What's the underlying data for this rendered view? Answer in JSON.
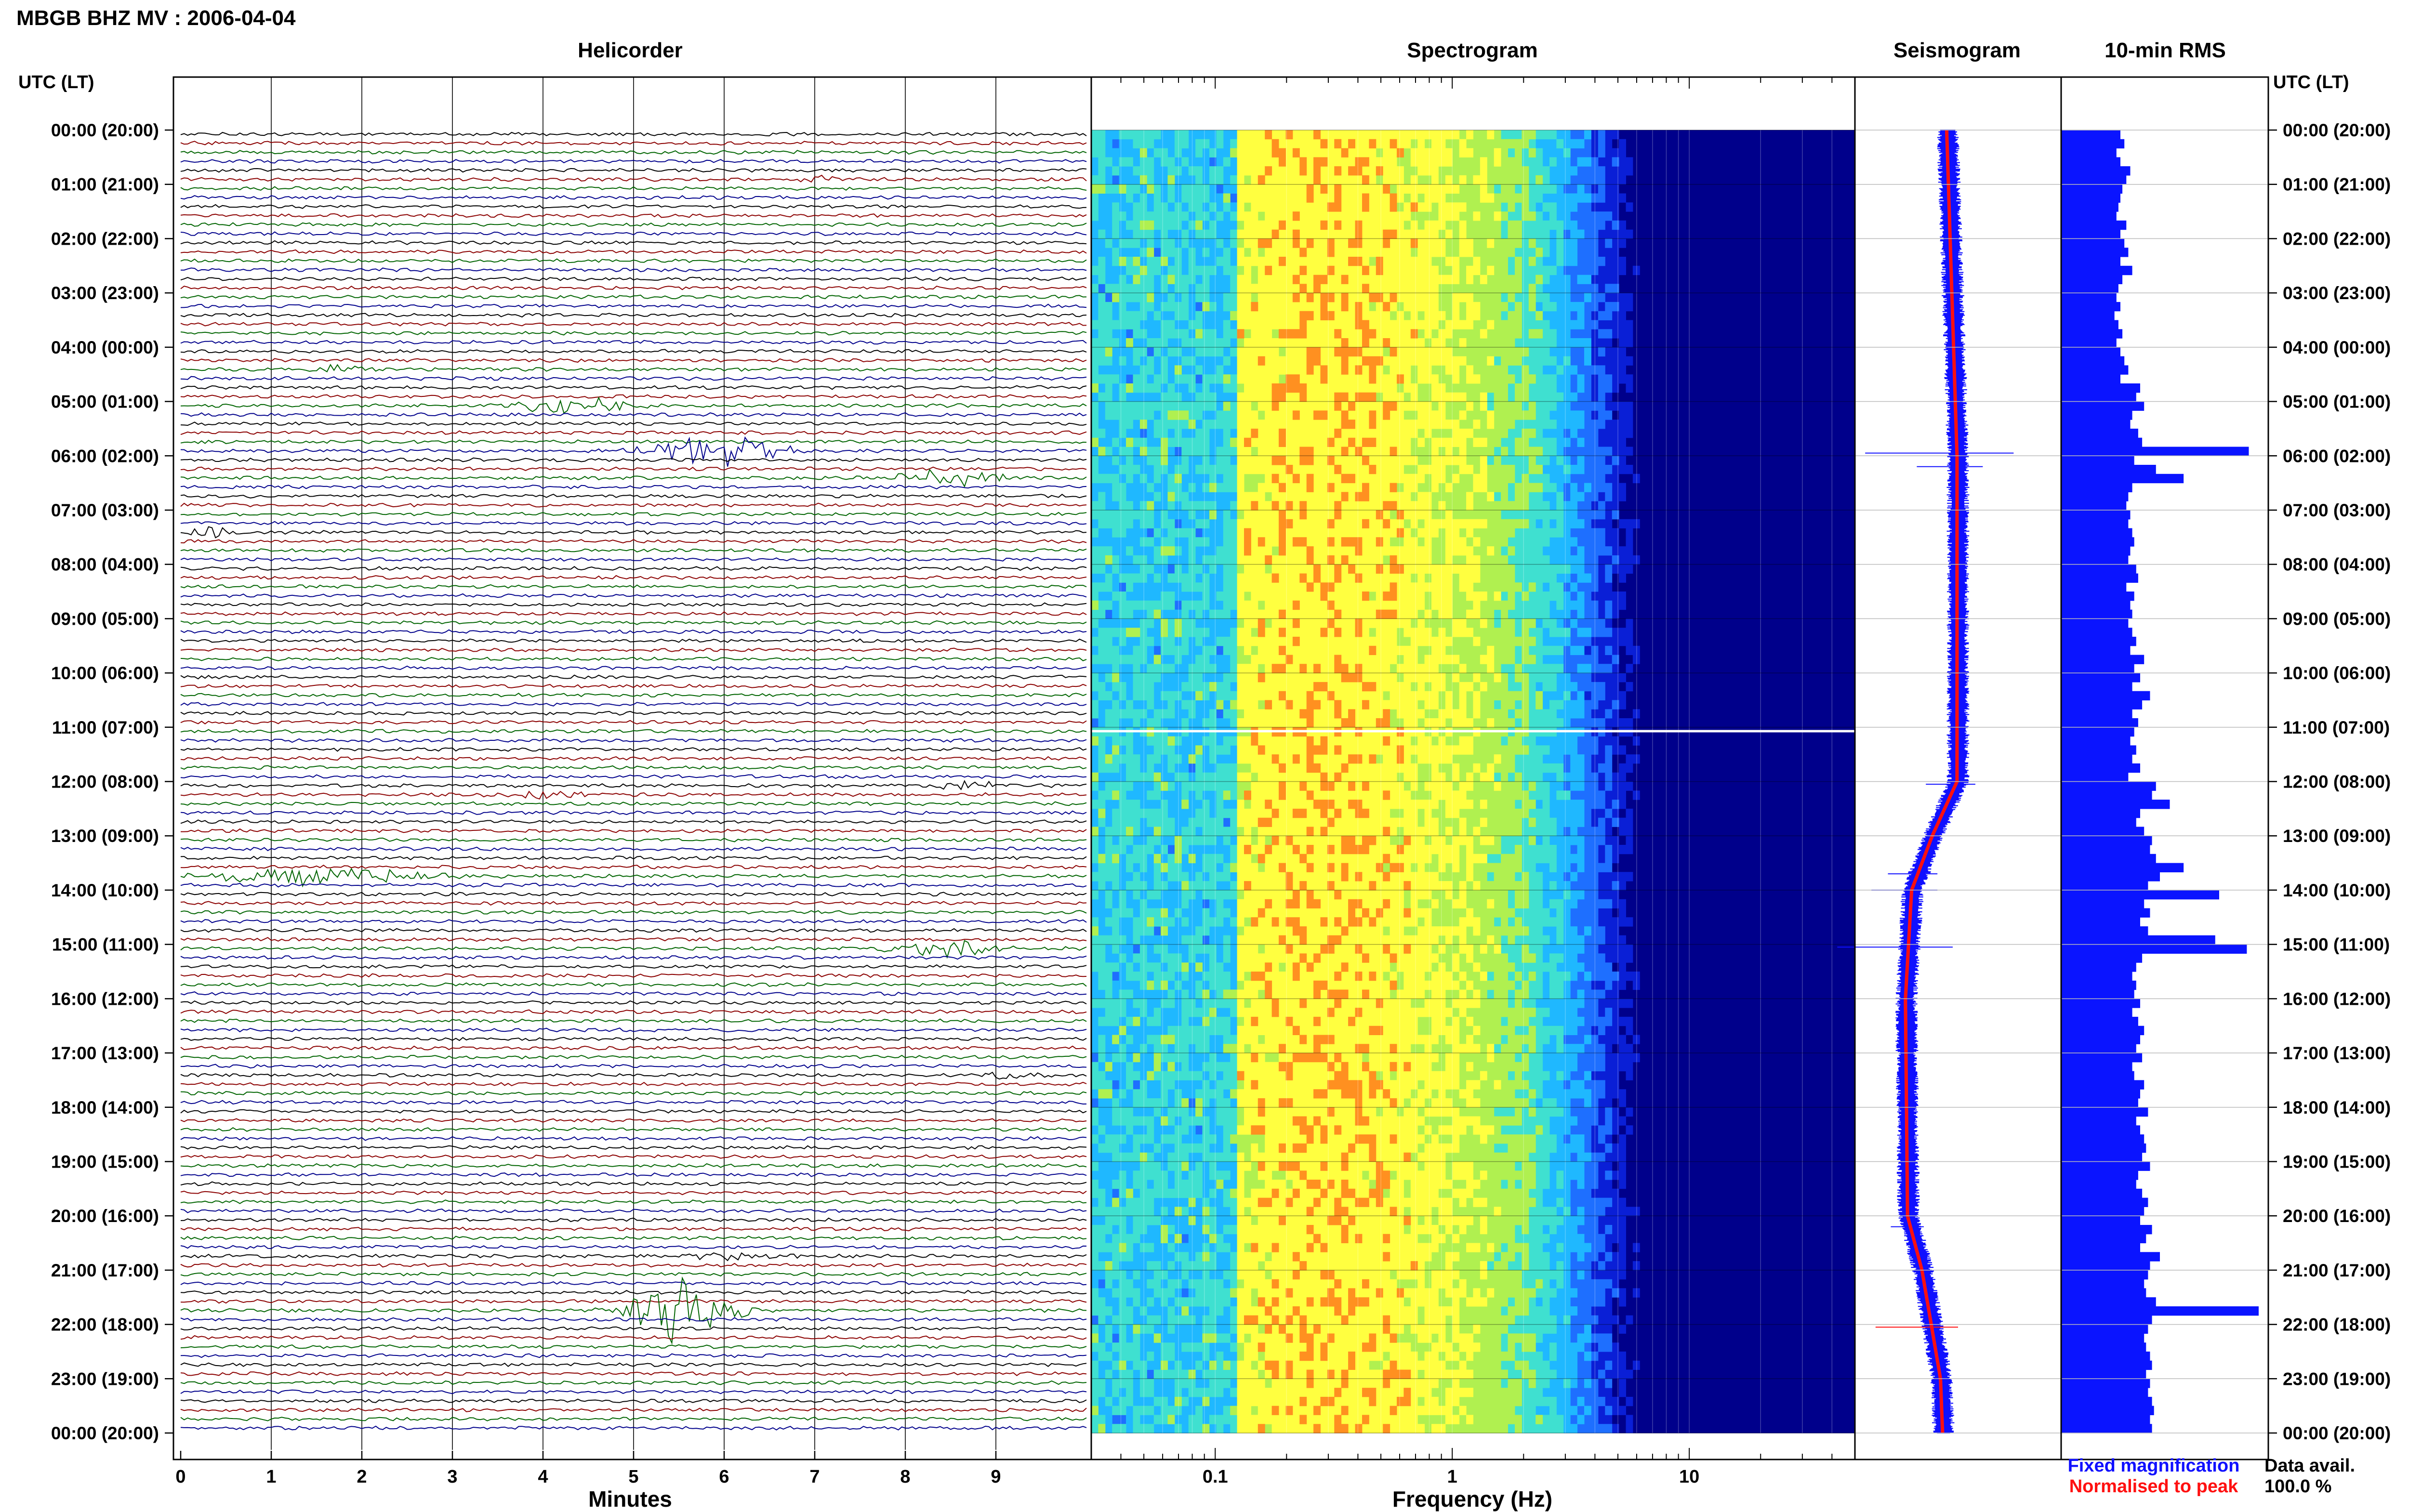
{
  "header": {
    "title": "MBGB BHZ MV : 2006-04-04"
  },
  "panels": {
    "helicorder": "Helicorder",
    "spectrogram": "Spectrogram",
    "seismogram": "Seismogram",
    "rms": "10-min RMS"
  },
  "axis_labels": {
    "time_left": "UTC (LT)",
    "time_right": "UTC (LT)",
    "helicorder_x": "Minutes",
    "spectrogram_x": "Frequency (Hz)"
  },
  "legend": {
    "fixed": "Fixed magnification",
    "normalised": "Normalised to peak",
    "fixed_color": "#1010ff",
    "normalised_color": "#ff1010"
  },
  "data_avail": {
    "label": "Data avail.",
    "value": "100.0 %"
  },
  "colors": {
    "trace_cycle": [
      "#000000",
      "#8b0000",
      "#006400",
      "#00008b"
    ],
    "rms_bar": "#0a14ff",
    "seismo_fixed": "#1010ff",
    "seismo_norm": "#ff1010"
  },
  "chart_data": [
    {
      "type": "line",
      "title": "Helicorder",
      "xlabel": "Minutes",
      "x_ticks": [
        0,
        1,
        2,
        3,
        4,
        5,
        6,
        7,
        8,
        9
      ],
      "xlim": [
        0,
        10
      ],
      "rows": 144,
      "time_ticks": [
        "00:00 (20:00)",
        "01:00 (21:00)",
        "02:00 (22:00)",
        "03:00 (23:00)",
        "04:00 (00:00)",
        "05:00 (01:00)",
        "06:00 (02:00)",
        "07:00 (03:00)",
        "08:00 (04:00)",
        "09:00 (05:00)",
        "10:00 (06:00)",
        "11:00 (07:00)",
        "12:00 (08:00)",
        "13:00 (09:00)",
        "14:00 (10:00)",
        "15:00 (11:00)",
        "16:00 (12:00)",
        "17:00 (13:00)",
        "18:00 (14:00)",
        "19:00 (15:00)",
        "20:00 (16:00)",
        "21:00 (17:00)",
        "22:00 (18:00)",
        "23:00 (19:00)",
        "00:00 (20:00)"
      ],
      "events": [
        {
          "row": 35,
          "minute": 5.9,
          "amp": 1.6,
          "dur": 1.2
        },
        {
          "row": 130,
          "minute": 5.55,
          "amp": 3.5,
          "dur": 0.9
        },
        {
          "row": 30,
          "minute": 4.3,
          "amp": 0.9,
          "dur": 1.3
        },
        {
          "row": 38,
          "minute": 8.5,
          "amp": 0.8,
          "dur": 1.1
        },
        {
          "row": 82,
          "minute": 1.5,
          "amp": 0.9,
          "dur": 2.0
        },
        {
          "row": 90,
          "minute": 8.4,
          "amp": 1.0,
          "dur": 0.9
        },
        {
          "row": 72,
          "minute": 8.6,
          "amp": 0.6,
          "dur": 0.6
        },
        {
          "row": 73,
          "minute": 4.0,
          "amp": 0.5,
          "dur": 0.8
        },
        {
          "row": 124,
          "minute": 6.0,
          "amp": 0.4,
          "dur": 1.0
        },
        {
          "row": 26,
          "minute": 1.7,
          "amp": 0.4,
          "dur": 0.8
        },
        {
          "row": 44,
          "minute": 0.4,
          "amp": 0.5,
          "dur": 0.6
        },
        {
          "row": 104,
          "minute": 9.1,
          "amp": 0.4,
          "dur": 0.6
        },
        {
          "row": 5,
          "minute": 7.0,
          "amp": 0.4,
          "dur": 0.7
        }
      ]
    },
    {
      "type": "heatmap",
      "title": "Spectrogram",
      "xlabel": "Frequency (Hz)",
      "x_scale": "log",
      "x_ticks": [
        0.1,
        1,
        10
      ],
      "xlim": [
        0.03,
        50
      ],
      "y_hours": [
        0,
        24
      ],
      "colormap": [
        "#00008b",
        "#0a1fd6",
        "#1e6fff",
        "#1fb8ff",
        "#3fe0d0",
        "#b0f050",
        "#ffff40",
        "#ff9020"
      ],
      "peak_frequency_hz": 0.3
    },
    {
      "type": "line",
      "title": "Seismogram",
      "series": [
        {
          "name": "Fixed magnification",
          "color": "#1010ff"
        },
        {
          "name": "Normalised to peak",
          "color": "#ff1010"
        }
      ],
      "profile_hours": [
        0,
        6,
        12,
        13,
        14,
        16,
        20,
        21,
        23,
        24
      ],
      "profile_offset": [
        0.45,
        0.5,
        0.5,
        0.38,
        0.28,
        0.25,
        0.26,
        0.33,
        0.42,
        0.43
      ]
    },
    {
      "type": "bar",
      "title": "10-min RMS",
      "orientation": "horizontal",
      "values": [
        30,
        32,
        28,
        30,
        35,
        33,
        31,
        30,
        29,
        28,
        33,
        30,
        32,
        34,
        30,
        36,
        31,
        29,
        28,
        30,
        27,
        29,
        31,
        28,
        30,
        32,
        34,
        30,
        40,
        38,
        42,
        36,
        35,
        39,
        41,
        95,
        37,
        48,
        62,
        36,
        34,
        33,
        35,
        34,
        36,
        37,
        35,
        34,
        38,
        39,
        33,
        37,
        35,
        36,
        34,
        36,
        38,
        35,
        42,
        37,
        40,
        36,
        45,
        41,
        36,
        39,
        37,
        35,
        38,
        36,
        40,
        34,
        48,
        46,
        55,
        40,
        38,
        42,
        46,
        45,
        48,
        62,
        50,
        44,
        80,
        42,
        45,
        40,
        44,
        78,
        94,
        41,
        38,
        36,
        38,
        37,
        40,
        36,
        39,
        42,
        40,
        38,
        41,
        36,
        37,
        42,
        40,
        39,
        44,
        38,
        40,
        42,
        43,
        41,
        45,
        39,
        38,
        41,
        44,
        42,
        40,
        46,
        43,
        40,
        50,
        45,
        44,
        42,
        43,
        48,
        100,
        46,
        44,
        42,
        43,
        45,
        46,
        43,
        45,
        44,
        46,
        47,
        45,
        46
      ]
    }
  ]
}
